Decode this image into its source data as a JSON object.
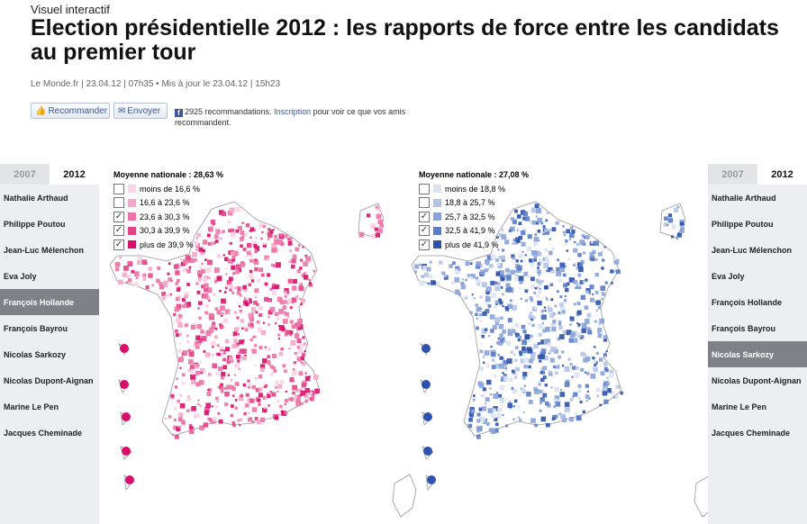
{
  "header": {
    "kicker": "Visuel interactif",
    "title": "Election présidentielle 2012 : les rapports de force entre les candidats au premier tour",
    "meta": "Le Monde.fr | 23.04.12 | 07h35  •  Mis à jour le 23.04.12 | 15h23"
  },
  "social": {
    "recommend_label": "Recommander",
    "send_label": "Envoyer",
    "fb_text_before": "2925 recommandations. ",
    "fb_link": "Inscription",
    "fb_text_after": " pour voir ce que vos amis recommandent."
  },
  "left_panel": {
    "tabs": [
      "2007",
      "2012"
    ],
    "active_tab": "2012",
    "candidates": [
      "Nathalie Arthaud",
      "Philippe Poutou",
      "Jean-Luc Mélenchon",
      "Eva Joly",
      "François Hollande",
      "François Bayrou",
      "Nicolas Sarkozy",
      "Nicolas Dupont-Aignan",
      "Marine Le Pen",
      "Jacques Cheminade"
    ],
    "selected": "François Hollande"
  },
  "right_panel": {
    "tabs": [
      "2007",
      "2012"
    ],
    "active_tab": "2012",
    "candidates": [
      "Nathalie Arthaud",
      "Philippe Poutou",
      "Jean-Luc Mélenchon",
      "Eva Joly",
      "François Hollande",
      "François Bayrou",
      "Nicolas Sarkozy",
      "Nicolas Dupont-Aignan",
      "Marine Le Pen",
      "Jacques Cheminade"
    ],
    "selected": "Nicolas Sarkozy"
  },
  "maps": [
    {
      "candidate": "François Hollande",
      "national_average": "Moyenne nationale : 28,63 %",
      "legend": [
        {
          "label": "moins de 16,6 %",
          "color": "#f9d4e4",
          "checked": false
        },
        {
          "label": "16,6 à 23,6 %",
          "color": "#f3a8c8",
          "checked": false
        },
        {
          "label": "23,6 à 30,3 %",
          "color": "#ec74a6",
          "checked": true
        },
        {
          "label": "30,3 à 39,9 %",
          "color": "#e44587",
          "checked": true
        },
        {
          "label": "plus de 39,9 %",
          "color": "#d90d6b",
          "checked": true
        }
      ]
    },
    {
      "candidate": "Nicolas Sarkozy",
      "national_average": "Moyenne nationale : 27,08 %",
      "legend": [
        {
          "label": "moins de 18,8 %",
          "color": "#dbe3f3",
          "checked": false
        },
        {
          "label": "18,8 à 25,7 %",
          "color": "#b3c4e6",
          "checked": false
        },
        {
          "label": "25,7 à 32,5 %",
          "color": "#8aa3d8",
          "checked": true
        },
        {
          "label": "32,5 à 41,9 %",
          "color": "#5a7cc6",
          "checked": true
        },
        {
          "label": "plus de 41,9 %",
          "color": "#2d52ad",
          "checked": true
        }
      ]
    }
  ]
}
